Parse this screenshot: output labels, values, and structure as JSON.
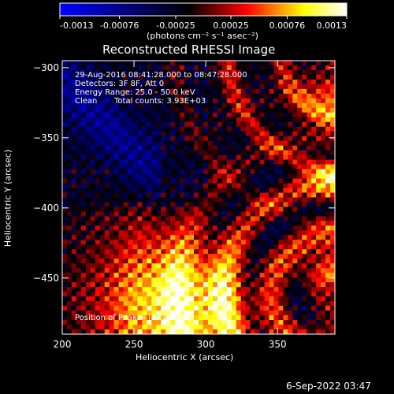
{
  "chart_data": {
    "type": "heatmap",
    "title": "Reconstructed RHESSI Image",
    "xlabel": "Heliocentric X (arcsec)",
    "ylabel": "Heliocentric Y (arcsec)",
    "xlim": [
      200,
      390
    ],
    "ylim": [
      -490,
      -295
    ],
    "xticks": [
      200,
      250,
      300,
      350
    ],
    "yticks": [
      -300,
      -350,
      -400,
      -450
    ],
    "colorbar": {
      "range": [
        -0.0013,
        0.0013
      ],
      "ticks": [
        "-0.0013",
        "-0.00076",
        "-0.00025",
        "0.00025",
        "0.00076",
        "0.0013"
      ],
      "unit_label": "(photons cm⁻² s⁻¹ asec⁻²)",
      "colors": [
        "#0000ff",
        "#000000",
        "#ff0000",
        "#ffff00",
        "#ffffff"
      ]
    },
    "annotations": {
      "time_range": "29-Aug-2016 08:41:28.000 to 08:47:28.000",
      "detectors": "Detectors: 3F 8F, Att 0",
      "energy": "Energy Range: 25.0 - 50.0 keV",
      "method": "Clean",
      "counts": "Total counts: 3.93E+03",
      "peak": "Position of Peak = [311 -477]"
    },
    "peak": [
      311,
      -477
    ],
    "grid": false
  },
  "footer": {
    "timestamp": "6-Sep-2022 03:47"
  }
}
